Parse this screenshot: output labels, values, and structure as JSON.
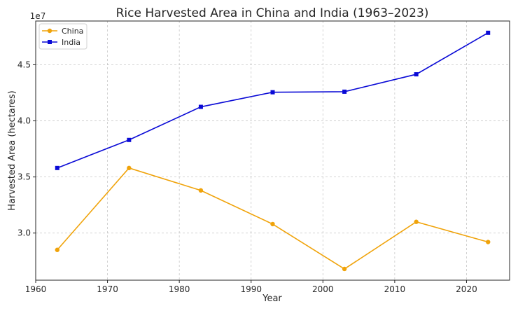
{
  "chart_data": {
    "type": "line",
    "title": "Rice Harvested Area in China and India (1963–2023)",
    "xlabel": "Year",
    "ylabel": "Harvested Area (hectares)",
    "y_offset_label": "1e7",
    "x": [
      1963,
      1973,
      1983,
      1993,
      2003,
      2013,
      2023
    ],
    "xlim": [
      1960,
      2026
    ],
    "ylim": [
      25800000,
      48900000
    ],
    "x_ticks": [
      1960,
      1970,
      1980,
      1990,
      2000,
      2010,
      2020
    ],
    "y_ticks": [
      30000000,
      35000000,
      40000000,
      45000000
    ],
    "y_tick_labels": [
      "3.0",
      "3.5",
      "4.0",
      "4.5"
    ],
    "grid": true,
    "legend_position": "top-left",
    "series": [
      {
        "name": "China",
        "color": "#f0a30a",
        "marker": "circle",
        "values": [
          28500000,
          35800000,
          33800000,
          30800000,
          26800000,
          31000000,
          29200000
        ]
      },
      {
        "name": "India",
        "color": "#0a0ad6",
        "marker": "square",
        "values": [
          35800000,
          38300000,
          41250000,
          42550000,
          42600000,
          44150000,
          47850000
        ]
      }
    ]
  }
}
